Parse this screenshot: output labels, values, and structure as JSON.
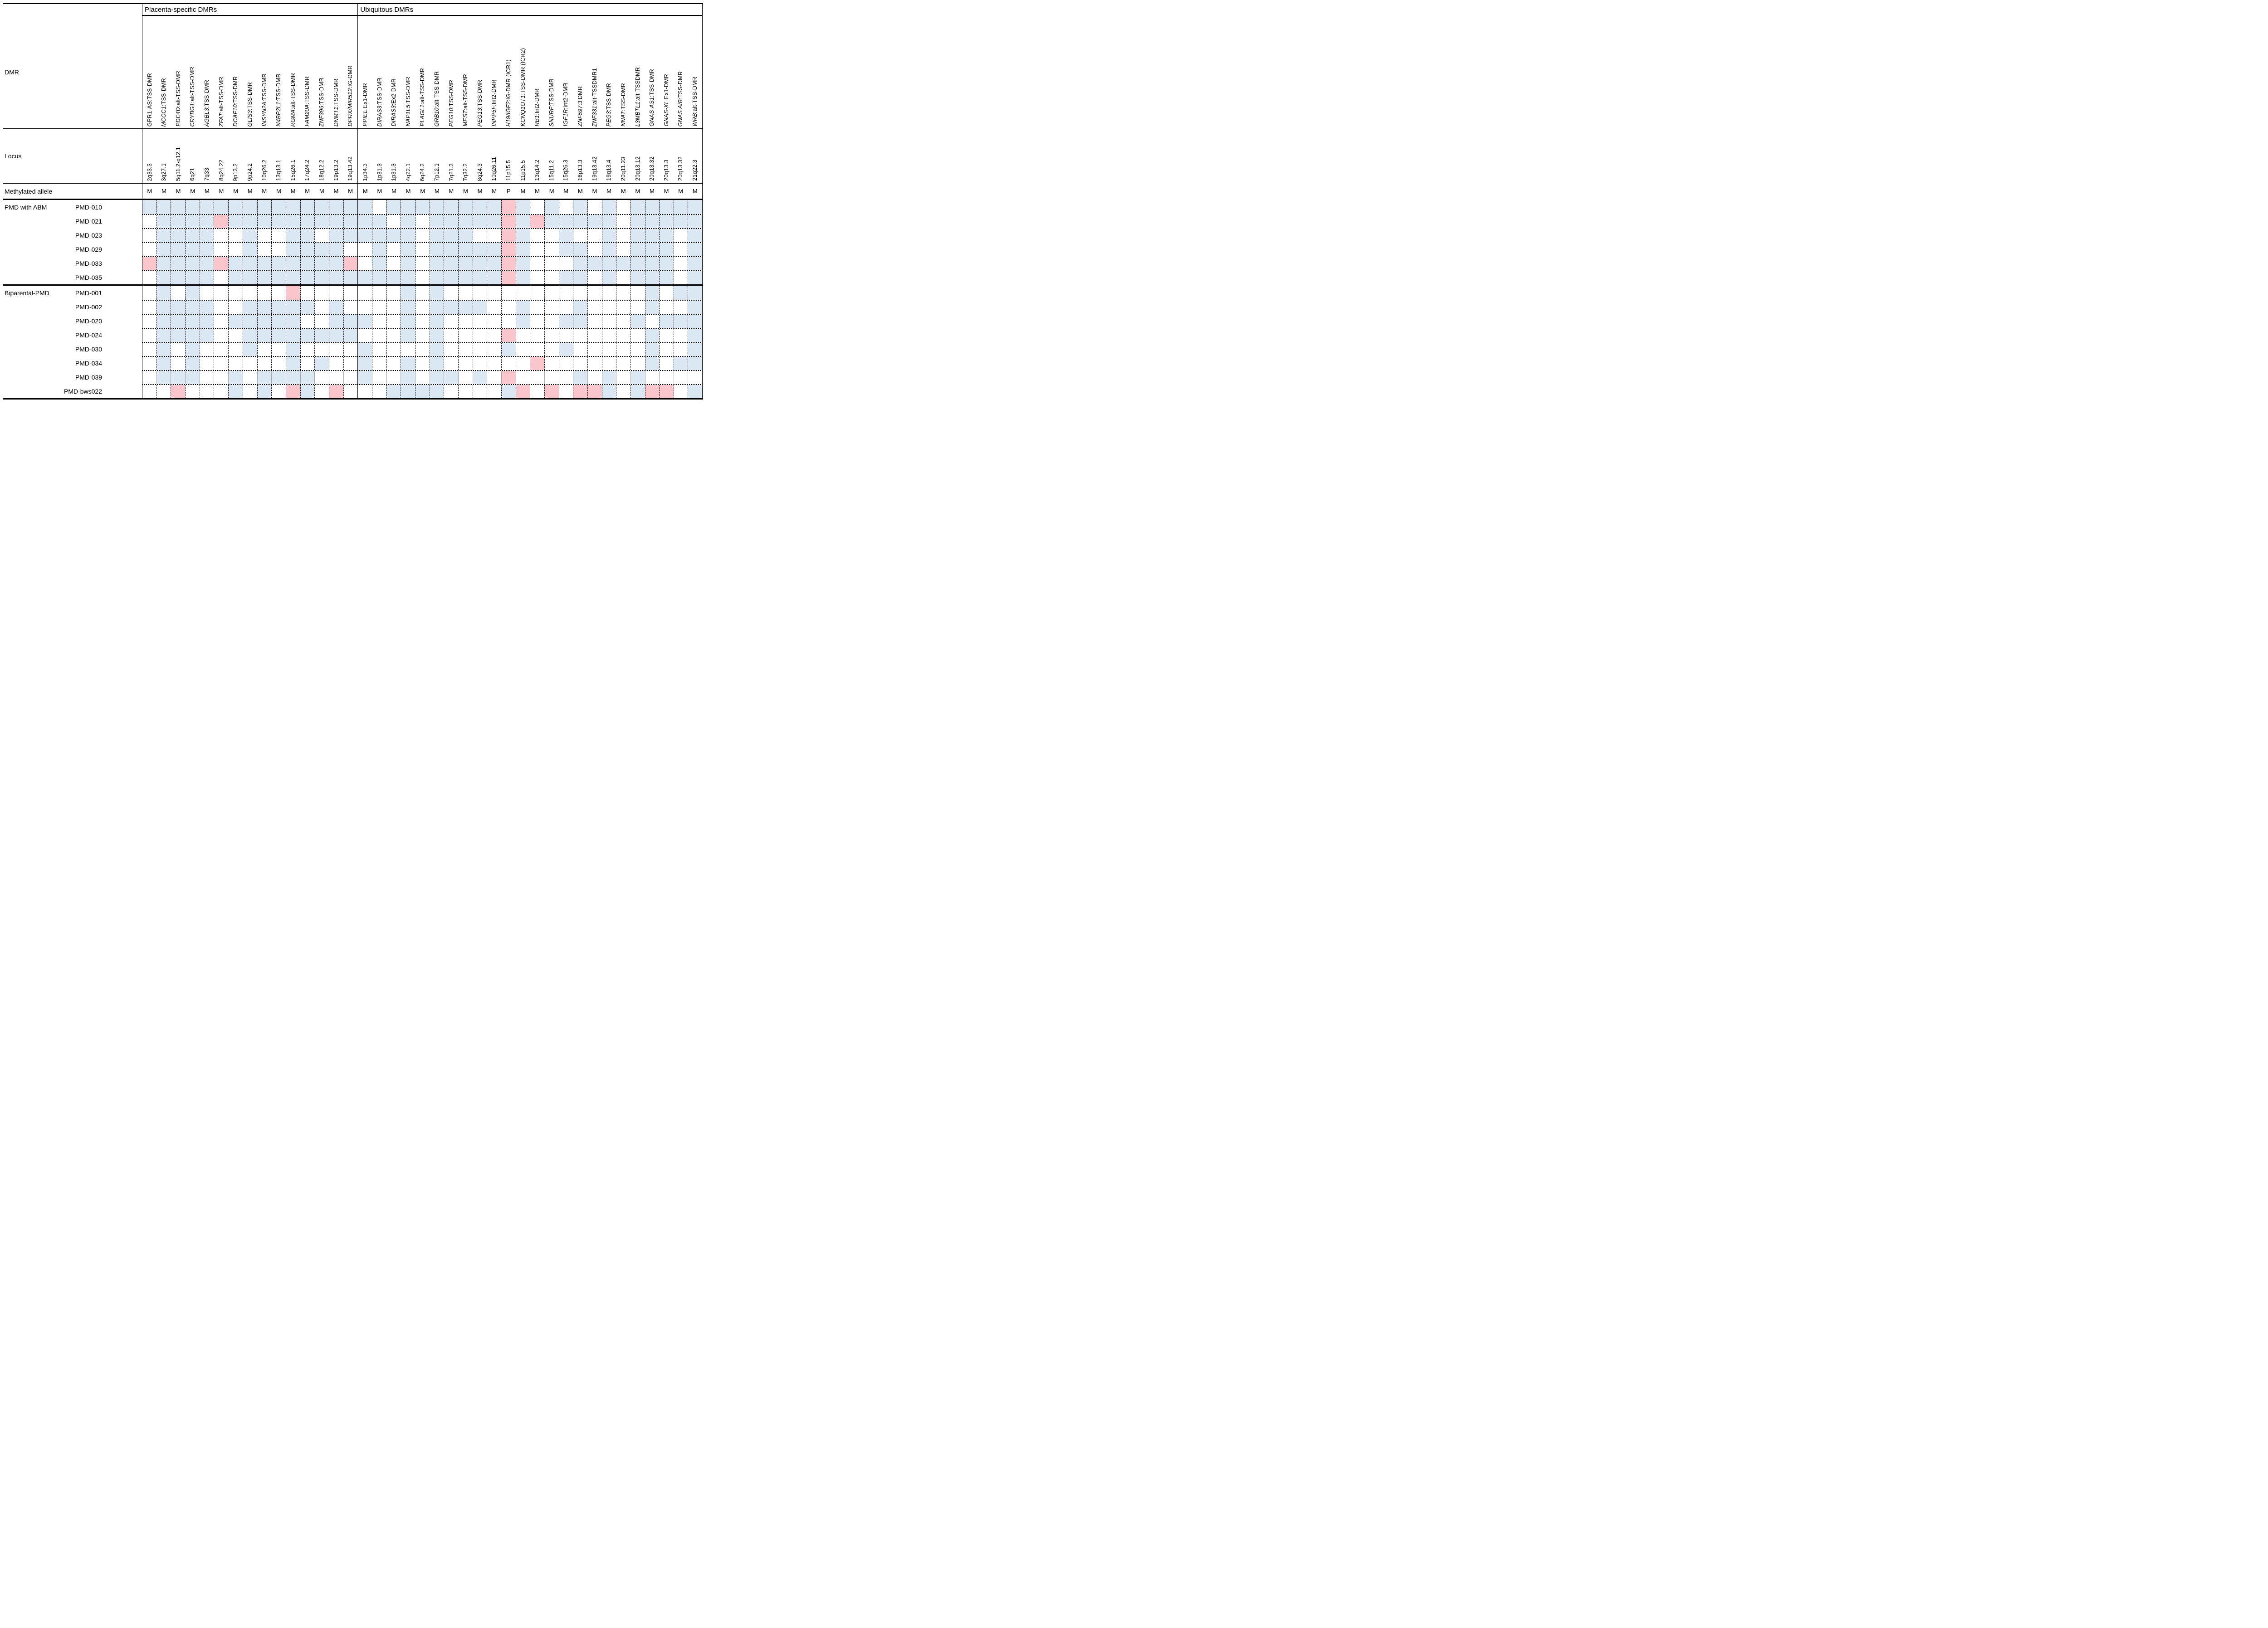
{
  "chart_data": {
    "type": "heatmap",
    "sections": [
      {
        "label": "Placenta-specific DMRs",
        "n_columns": 15
      },
      {
        "label": "Ubiquitous DMRs",
        "n_columns": 24
      }
    ],
    "row_headers": {
      "dmr": "DMR",
      "locus": "Locus",
      "allele": "Methylated allele"
    },
    "columns": [
      {
        "gene": "GPR1-AS",
        "italic": false,
        "suffix": ":TSS-DMR",
        "locus": "2q33.3",
        "allele": "M",
        "section": 0
      },
      {
        "gene": "MCCC1",
        "italic": true,
        "suffix": ":TSS-DMR",
        "locus": "3q27.1",
        "allele": "M",
        "section": 0
      },
      {
        "gene": "PDE4D",
        "italic": true,
        "suffix": ":alt-TSS-DMR",
        "locus": "5q11.2-q12.1",
        "allele": "M",
        "section": 0
      },
      {
        "gene": "CRYBG1",
        "italic": true,
        "suffix": ":alt-TSS-DMR",
        "locus": "6q21",
        "allele": "M",
        "section": 0
      },
      {
        "gene": "AGBL3",
        "italic": true,
        "suffix": ":TSS-DMR",
        "locus": "7q33",
        "allele": "M",
        "section": 0
      },
      {
        "gene": "ZFAT",
        "italic": true,
        "suffix": ":alt-TSS-DMR",
        "locus": "8q24.22",
        "allele": "M",
        "section": 0
      },
      {
        "gene": "DCAF10",
        "italic": true,
        "suffix": ":TSS-DMR",
        "locus": "9p13.2",
        "allele": "M",
        "section": 0
      },
      {
        "gene": "GLIS3",
        "italic": true,
        "suffix": ":TSS-DMR",
        "locus": "9p24.2",
        "allele": "M",
        "section": 0
      },
      {
        "gene": "INSYN2A",
        "italic": true,
        "suffix": ":TSS-DMR",
        "locus": "10q26.2",
        "allele": "M",
        "section": 0
      },
      {
        "gene": "N4BP2L1",
        "italic": true,
        "suffix": ":TSS-DMR",
        "locus": "13q13.1",
        "allele": "M",
        "section": 0
      },
      {
        "gene": "RGMA",
        "italic": true,
        "suffix": ":alt-TSS-DMR",
        "locus": "15q26.1",
        "allele": "M",
        "section": 0
      },
      {
        "gene": "FAM20A",
        "italic": true,
        "suffix": ":TSS-DMR",
        "locus": "17q24.2",
        "allele": "M",
        "section": 0
      },
      {
        "gene": "ZNF396",
        "italic": true,
        "suffix": ":TSS-DMR",
        "locus": "18q12.2",
        "allele": "M",
        "section": 0
      },
      {
        "gene": "DNMT1",
        "italic": true,
        "suffix": ":TSS-DMR",
        "locus": "19p13.2",
        "allele": "M",
        "section": 0
      },
      {
        "gene": "DPRX/MIR512",
        "italic": true,
        "suffix": ":IG-DMR",
        "locus": "19q13.42",
        "allele": "M",
        "section": 0
      },
      {
        "gene": "PPIEL",
        "italic": true,
        "suffix": ":Ex1-DMR",
        "locus": "1p34.3",
        "allele": "M",
        "section": 1
      },
      {
        "gene": "DIRAS3",
        "italic": true,
        "suffix": ":TSS-DMR",
        "locus": "1p31.3",
        "allele": "M",
        "section": 1
      },
      {
        "gene": "DIRAS3",
        "italic": true,
        "suffix": ":Ex2-DMR",
        "locus": "1p31.3",
        "allele": "M",
        "section": 1
      },
      {
        "gene": "NAP1L5",
        "italic": true,
        "suffix": ":TSS-DMR",
        "locus": "4q22.1",
        "allele": "M",
        "section": 1
      },
      {
        "gene": "PLAGL1",
        "italic": true,
        "suffix": ":alt-TSS-DMR",
        "locus": "6q24.2",
        "allele": "M",
        "section": 1
      },
      {
        "gene": "GRB10",
        "italic": true,
        "suffix": ":alt-TSS-DMR",
        "locus": "7p12.1",
        "allele": "M",
        "section": 1
      },
      {
        "gene": "PEG10",
        "italic": true,
        "suffix": ":TSS-DMR",
        "locus": "7q21.3",
        "allele": "M",
        "section": 1
      },
      {
        "gene": "MEST",
        "italic": true,
        "suffix": ":alt-TSS-DMR",
        "locus": "7q32.2",
        "allele": "M",
        "section": 1
      },
      {
        "gene": "PEG13",
        "italic": true,
        "suffix": ":TSS-DMR",
        "locus": "8q24.3",
        "allele": "M",
        "section": 1
      },
      {
        "gene": "INPP5F",
        "italic": true,
        "suffix": ":Int2-DMR",
        "locus": "10q26.11",
        "allele": "M",
        "section": 1
      },
      {
        "gene": "H19/IGF2",
        "italic": true,
        "suffix": ":IG-DMR (ICR1)",
        "locus": "11p15.5",
        "allele": "P",
        "section": 1
      },
      {
        "gene": "KCNQ1OT1",
        "italic": true,
        "suffix": ":TSS-DMR (ICR2)",
        "locus": "11p15.5",
        "allele": "M",
        "section": 1
      },
      {
        "gene": "RB1",
        "italic": true,
        "suffix": ":Int2-DMR",
        "locus": "13q14.2",
        "allele": "M",
        "section": 1
      },
      {
        "gene": "SNURF",
        "italic": true,
        "suffix": ":TSS-DMR",
        "locus": "15q11.2",
        "allele": "M",
        "section": 1
      },
      {
        "gene": "IGF1R",
        "italic": true,
        "suffix": ":Int2-DMR",
        "locus": "15q26.3",
        "allele": "M",
        "section": 1
      },
      {
        "gene": "ZNF597",
        "italic": true,
        "suffix": ":3'DMR",
        "locus": "16p13.3",
        "allele": "M",
        "section": 1
      },
      {
        "gene": "ZNF331",
        "italic": true,
        "suffix": ":alt-TSSDMR1",
        "locus": "19q13.42",
        "allele": "M",
        "section": 1
      },
      {
        "gene": "PEG3",
        "italic": true,
        "suffix": ":TSS-DMR",
        "locus": "19q13.4",
        "allele": "M",
        "section": 1
      },
      {
        "gene": "NNAT",
        "italic": true,
        "suffix": ":TSS-DMR",
        "locus": "20q11.23",
        "allele": "M",
        "section": 1
      },
      {
        "gene": "L3MBTL1",
        "italic": true,
        "suffix": ":alt-TSSDMR",
        "locus": "20q13.12",
        "allele": "M",
        "section": 1
      },
      {
        "gene": "GNAS-AS1",
        "italic": true,
        "suffix": ":TSS-DMR",
        "locus": "20q13.32",
        "allele": "M",
        "section": 1
      },
      {
        "gene": "GNAS-XL",
        "italic": true,
        "suffix": ":Ex1-DMR",
        "locus": "20q13.3",
        "allele": "M",
        "section": 1
      },
      {
        "gene": "GNAS A/B",
        "italic": true,
        "suffix": ":TSS-DMR",
        "locus": "20q13.32",
        "allele": "M",
        "section": 1
      },
      {
        "gene": "WRB",
        "italic": true,
        "suffix": ":alt-TSS-DMR",
        "locus": "21q22.3",
        "allele": "M",
        "section": 1
      }
    ],
    "groups": [
      {
        "label": "PMD with ABM",
        "samples": [
          "PMD-010",
          "PMD-021",
          "PMD-023",
          "PMD-029",
          "PMD-033",
          "PMD-035"
        ]
      },
      {
        "label": "Biparental-PMD",
        "samples": [
          "PMD-001",
          "PMD-002",
          "PMD-020",
          "PMD-024",
          "PMD-030",
          "PMD-034",
          "PMD-039",
          "PMD-bws022"
        ]
      }
    ],
    "cells": {
      "PMD-010": "BBBBBBBBBBBBBBBBWBBBBBBBBPBWBWBWBWBBBBB",
      "PMD-021": "WBBBBPBBBBBBBBBBBWBWBBBBBPBPBBBBBWBBBBB",
      "PMD-023": "WBBBBWWBWWBBWBBBBBBWBBBWWPBWWBWWBWBBBWB",
      "PMD-029": "WBBBBWWBWWBBBBWWBWBWBBBBBPBWWBBWBWBBBWB",
      "PMD-033": "PBBBBPBBBBBBBBPWBWBWBBBBBPBWWWBBBBBBBWB",
      "PMD-035": "WBBBBWBBBBBBBBBBBBBWBBBBBPBWWBBWBWBBBWB",
      "PMD-001": "WBWBWWWWWWPWWWWWWWBWBWWWWWWWWWWWWWWBWBB",
      "PMD-002": "WBBBBWWBBBBBWBWWWWBWBBBBWWBWWWBWWWWBWWB",
      "PMD-020": "WBBBBWBBBBBWWBBBWWBWBWWWWWBWWBBWWWBWBBB",
      "PMD-024": "WBBBBWWBBBBBBBBWWWBWBWWWWPWWWWWWWWWBWWB",
      "PMD-030": "WBWBWWWBWWBWWWWBWWWWBWWWWBWWWBWWWWWBWWB",
      "PMD-034": "WBWBWWWWWWBWBWWBWWBWBWWWWWWPWWWWWWWBWBB",
      "PMD-039": "WBBBWWBWBBBBWWWBWWBWBBWBWPWWWWBWBWBWWWW",
      "PMD-bws022": "WWPWWWBWBWPBWPWWWBBBBWWWWBPWPWPPBWBPPWB"
    },
    "solid_border_samples": [
      "PMD-039"
    ],
    "colors": {
      "blue": "#dbe8f4",
      "pink": "#f9c6ce",
      "white": "#ffffff",
      "grid": "#000000",
      "solid_row_grid": "#a8a8a8"
    }
  }
}
